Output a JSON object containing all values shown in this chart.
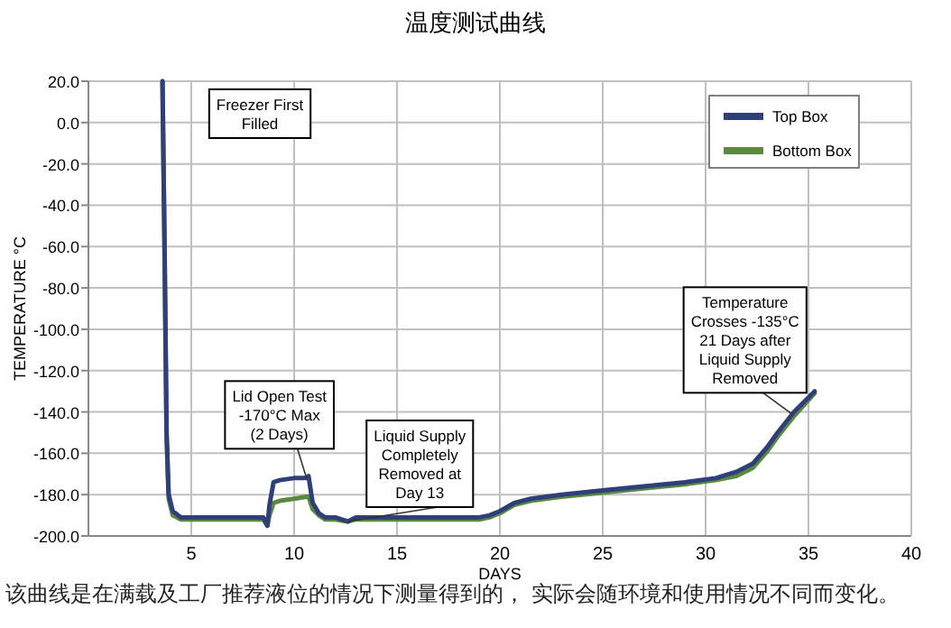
{
  "chart_data": {
    "type": "line",
    "title": "温度测试曲线",
    "xlabel": "DAYS",
    "ylabel": "TEMPERATURE   °C",
    "xlim": [
      0,
      40
    ],
    "xticks": [
      5,
      10,
      15,
      20,
      25,
      30,
      35,
      40
    ],
    "ylim": [
      -200,
      20
    ],
    "yticks": [
      {
        "value": -200,
        "label": "-200.0"
      },
      {
        "value": -180,
        "label": "-180.0"
      },
      {
        "value": -160,
        "label": "-160.0"
      },
      {
        "value": -140,
        "label": "-140.0"
      },
      {
        "value": -120,
        "label": "-120.0"
      },
      {
        "value": -100,
        "label": "-100.0"
      },
      {
        "value": -80,
        "label": "-80.0"
      },
      {
        "value": -60,
        "label": "-60.0"
      },
      {
        "value": -40,
        "label": "-40.0"
      },
      {
        "value": -20,
        "label": "-20.0"
      },
      {
        "value": 0,
        "label": "0.0"
      },
      {
        "value": 20,
        "label": "20.0"
      }
    ],
    "grid": true,
    "legend": "top right",
    "marker": "none",
    "line_style": "solid",
    "series": [
      {
        "name": "Top Box",
        "color": "#2e3f7a",
        "x": [
          3.6,
          3.7,
          3.8,
          3.9,
          4.1,
          4.5,
          5,
          6,
          7,
          8,
          8.5,
          8.7,
          8.8,
          9.0,
          9.3,
          10,
          10.6,
          10.7,
          10.9,
          11.2,
          11.5,
          12,
          12.6,
          13,
          14,
          16,
          18,
          19,
          19.5,
          20,
          20.7,
          21.5,
          23,
          25,
          27,
          29,
          30.5,
          31.5,
          32.3,
          33,
          33.5,
          34.3,
          35.3
        ],
        "values": [
          20,
          -60,
          -150,
          -180,
          -188,
          -191,
          -191,
          -191,
          -191,
          -191,
          -191,
          -195,
          -185,
          -174,
          -173,
          -172,
          -172,
          -171,
          -184,
          -189,
          -191,
          -191,
          -193,
          -191,
          -191,
          -191,
          -191,
          -191,
          -190,
          -188,
          -184,
          -182,
          -180,
          -178,
          -176,
          -174,
          -172,
          -169,
          -165,
          -157,
          -150,
          -140,
          -130
        ]
      },
      {
        "name": "Bottom Box",
        "color": "#5a8a3e",
        "x": [
          3.6,
          3.7,
          3.8,
          3.9,
          4.1,
          4.5,
          5,
          6,
          7,
          8,
          8.5,
          8.7,
          8.8,
          9.0,
          9.3,
          10,
          10.6,
          10.7,
          10.9,
          11.2,
          11.5,
          12,
          12.6,
          13,
          14,
          16,
          18,
          19,
          19.5,
          20,
          20.7,
          21.5,
          23,
          25,
          27,
          29,
          30.5,
          31.5,
          32.3,
          33,
          33.5,
          34.3,
          35.3
        ],
        "values": [
          20,
          -60,
          -152,
          -182,
          -190,
          -192,
          -192,
          -192,
          -192,
          -192,
          -192,
          -195,
          -190,
          -184,
          -183,
          -182,
          -181,
          -181,
          -187,
          -190,
          -192,
          -192,
          -193,
          -192,
          -192,
          -192,
          -192,
          -192,
          -191,
          -189,
          -185,
          -183,
          -181,
          -179,
          -177,
          -175,
          -173,
          -171,
          -167,
          -159,
          -152,
          -142,
          -131
        ]
      }
    ],
    "annotations": [
      "Freezer First\nFilled",
      {
        "text": "Lid Open Test\n-170°C Max\n(2 Days)",
        "x": 10.6,
        "y": -172
      },
      {
        "text": "Liquid Supply\nCompletely\nRemoved at\nDay 13",
        "x": 12.6,
        "y": -193
      },
      {
        "text": "Temperature\nCrosses -135°C\n21 Days after\nLiquid Supply\nRemoved",
        "x": 34.2,
        "y": -141
      },
      "该曲线是在满载及工厂推荐液位的情况下测量得到的， 实际会随环境和使用情况不同而变化。"
    ]
  }
}
